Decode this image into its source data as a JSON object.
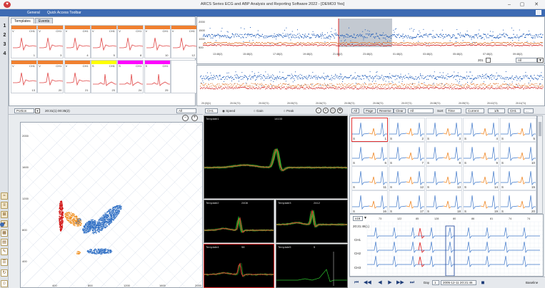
{
  "titlebar": {
    "app_icon": "heart-icon",
    "title": "ARCS Series ECG and ABP Analysis and Reporting Software 2022 - [DEMO3 Yes]",
    "minimize": "–",
    "maximize": "▢",
    "close": "✕"
  },
  "menu": {
    "items": [
      "General",
      "Quick Access Toolbar"
    ]
  },
  "left_pages": [
    "1",
    "2",
    "3",
    "4"
  ],
  "templates": {
    "tabs": [
      "Templates",
      "Events"
    ],
    "row1": [
      {
        "label": "V",
        "ch": "CH1",
        "num": "1"
      },
      {
        "label": "V",
        "ch": "CH1",
        "num": "3"
      },
      {
        "label": "V",
        "ch": "CH1",
        "num": "4"
      },
      {
        "label": "V",
        "ch": "CH1",
        "num": "5"
      },
      {
        "label": "V",
        "ch": "CH1",
        "num": "8"
      },
      {
        "label": "V",
        "ch": "CH1",
        "num": "10"
      },
      {
        "label": "V",
        "ch": "CH1",
        "num": "12"
      }
    ],
    "row2": [
      {
        "label": "V",
        "ch": "CH1",
        "num": "13"
      },
      {
        "label": "V",
        "ch": "CH1",
        "num": "20"
      },
      {
        "label": "V",
        "ch": "CH1",
        "num": "21"
      },
      {
        "label": "S",
        "ch": "CH1",
        "num": "23"
      },
      {
        "label": "S",
        "ch": "CH1",
        "num": "24"
      },
      {
        "label": "S",
        "ch": "CH1",
        "num": "25"
      },
      {
        "label": "",
        "ch": "",
        "num": ""
      }
    ],
    "header_colors_row1": [
      "#f08030",
      "#f08030",
      "#f08030",
      "#f08030",
      "#f08030",
      "#f08030",
      "#f08030"
    ],
    "header_colors_row2": [
      "#f08030",
      "#f08030",
      "#f08030",
      "#ffff00",
      "#ff00ff",
      "#ff00ff",
      "#ffffff"
    ]
  },
  "rhythm_top": {
    "yticks": [
      "2000",
      "1500",
      "1000",
      "500"
    ],
    "xticks": [
      "13:48(2)",
      "15:48(2)",
      "17:48(2)",
      "19:48(2)",
      "21:48(2)",
      "23:48(2)",
      "01:48(2)",
      "03:48(2)",
      "05:48(2)",
      "07:48(2)",
      "09:48(2)"
    ],
    "zoom_value": "201",
    "dropdown": "All"
  },
  "rhythm_bottom": {
    "xticks": [
      "20:(0)(1)",
      "20:01(71)",
      "20:02(71)",
      "20:03(71)",
      "20:04(71)",
      "20:05(71)",
      "20:06(71)",
      "20:07(71)",
      "20:08(71)",
      "20:09(71)",
      "20:10(71)",
      "20:11(71)"
    ]
  },
  "scatter": {
    "dropdown": "Portion",
    "range": "20:31(1) 00:35(2)",
    "all_dropdown": "All",
    "yticks": [
      "2000",
      "1600",
      "1200",
      "800",
      "400"
    ],
    "xticks": [
      "400",
      "800",
      "1200",
      "1600",
      "2000"
    ]
  },
  "mid_toolbar": {
    "ch": "CH1",
    "options": [
      "Speed",
      "Gain",
      "Peak"
    ]
  },
  "mid_panels": {
    "main": {
      "label": "Template1",
      "count": "14133"
    },
    "p2": {
      "label": "Template2",
      "count": "2408"
    },
    "p3": {
      "label": "Template3",
      "count": "2412"
    },
    "p4": {
      "label": "Template4",
      "count": "98"
    },
    "p5": {
      "label": "Template5",
      "count": "5"
    }
  },
  "right_toolbar": {
    "buttons": [
      "All",
      "Page",
      "Reverse",
      "Clear"
    ],
    "filter": "All",
    "sort_label": "Sort",
    "sort": "Time",
    "current": "Current",
    "pager": "1/5",
    "ch": "CH1"
  },
  "beats": [
    [
      {
        "s": "S",
        "n": "1"
      },
      {
        "s": "S",
        "n": "2"
      },
      {
        "s": "S",
        "n": "3"
      },
      {
        "s": "S",
        "n": "4"
      },
      {
        "s": "S",
        "n": "5"
      }
    ],
    [
      {
        "s": "S",
        "n": "6"
      },
      {
        "s": "S",
        "n": "7"
      },
      {
        "s": "S",
        "n": "8"
      },
      {
        "s": "S",
        "n": "9"
      },
      {
        "s": "S",
        "n": "10"
      }
    ],
    [
      {
        "s": "S",
        "n": "11"
      },
      {
        "s": "S",
        "n": "12"
      },
      {
        "s": "S",
        "n": "13"
      },
      {
        "s": "S",
        "n": "14"
      },
      {
        "s": "S",
        "n": "15"
      }
    ],
    [
      {
        "s": "S",
        "n": "16"
      },
      {
        "s": "S",
        "n": "17"
      },
      {
        "s": "S",
        "n": "18"
      },
      {
        "s": "S",
        "n": "19"
      },
      {
        "s": "S",
        "n": "20"
      }
    ]
  ],
  "strip": {
    "speed_dropdown": "x16",
    "time": "20:21:46(1)",
    "channels": [
      "CH1",
      "CH2",
      "CH3"
    ],
    "top_values": [
      "73",
      "122",
      "85",
      "128",
      "80",
      "86",
      "81",
      "74",
      "74"
    ]
  },
  "playbar": {
    "day_label": "Day",
    "day": "1",
    "datetime": "2005-12-11 20:21:46",
    "baseline": "Baseline"
  }
}
